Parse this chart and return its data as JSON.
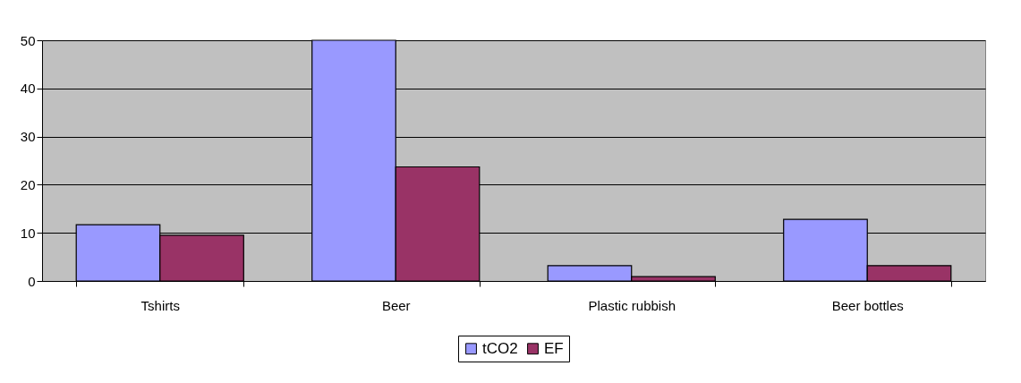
{
  "chart_data": {
    "type": "bar",
    "categories": [
      "Tshirts",
      "Beer",
      "Plastic rubbish",
      "Beer bottles"
    ],
    "series": [
      {
        "name": "tCO2",
        "color": "#9999ff",
        "values": [
          11.7,
          50,
          3.2,
          12.8
        ]
      },
      {
        "name": "EF",
        "color": "#993366",
        "values": [
          9.5,
          23.7,
          0.9,
          3.2
        ]
      }
    ],
    "ylim": [
      0,
      50
    ],
    "yticks": [
      0,
      10,
      20,
      30,
      40,
      50
    ],
    "grid": "y",
    "legend": "bottom"
  }
}
